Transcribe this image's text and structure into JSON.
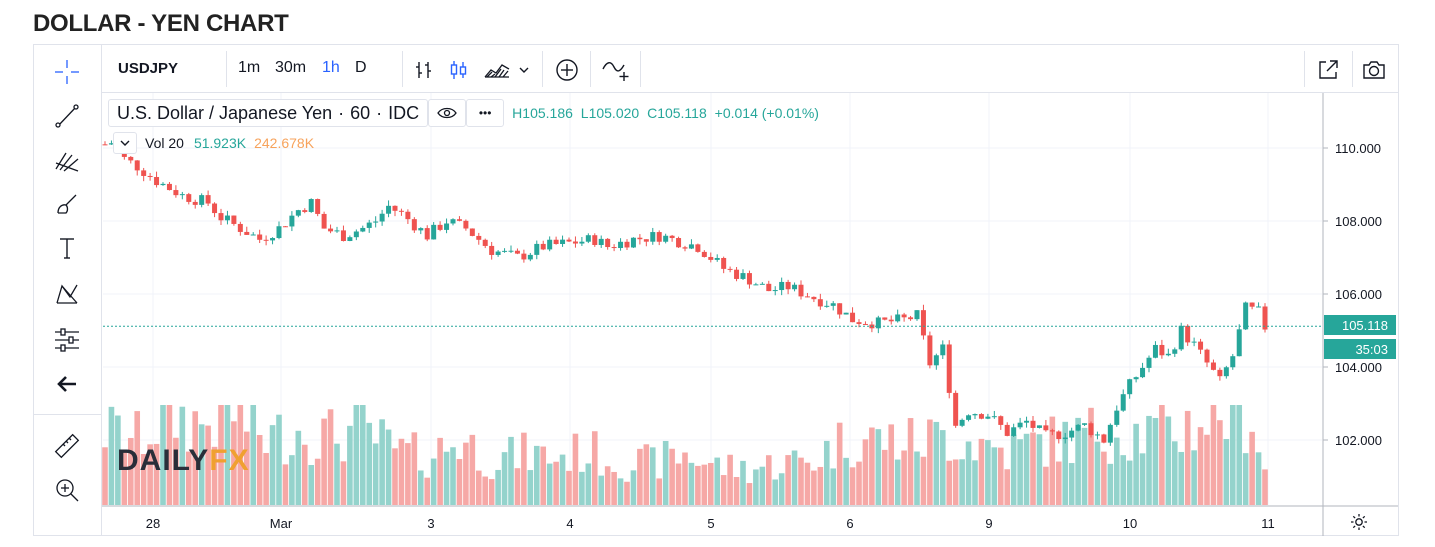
{
  "page_title": "DOLLAR - YEN CHART",
  "toolbar": {
    "symbol": "USDJPY",
    "intervals": [
      "1m",
      "30m",
      "1h",
      "D"
    ],
    "active_interval": "1h",
    "icons": [
      "bar-style-icon",
      "candle-style-icon",
      "area-style-icon",
      "chevron-down-icon",
      "add-circle-icon",
      "compare-icon",
      "snapshot-external-icon",
      "camera-icon"
    ]
  },
  "left_tools": [
    "crosshair-icon",
    "trend-line-icon",
    "fib-icon",
    "brush-icon",
    "text-icon",
    "pattern-icon",
    "measure-icon",
    "back-arrow-icon",
    "ruler-icon",
    "zoom-in-icon"
  ],
  "legend": {
    "name": "U.S. Dollar / Japanese Yen",
    "interval": "60",
    "exchange": "IDC",
    "high": "H105.186",
    "low": "L105.020",
    "close": "C105.118",
    "change": "+0.014 (+0.01%)",
    "more": "•••"
  },
  "volume_legend": {
    "label": "Vol 20",
    "v1": "51.923K",
    "v2": "242.678K"
  },
  "price_tags": {
    "last_price": "105.118",
    "countdown": "35:03"
  },
  "logo": {
    "part1": "DAILY",
    "part2": "FX"
  },
  "colors": {
    "up": "#26a69a",
    "down": "#ef5350",
    "up_vol": "#94d3cc",
    "down_vol": "#f6a8a6",
    "accent": "#2962ff",
    "grid": "#f0f3fa"
  },
  "chart_data": {
    "type": "candlestick",
    "y_ticks": [
      "110.000",
      "108.000",
      "106.000",
      "104.000",
      "102.000"
    ],
    "ylim": [
      100.5,
      111.2
    ],
    "x_ticks": [
      "28",
      "Mar",
      "3",
      "4",
      "5",
      "6",
      "9",
      "10",
      "11"
    ],
    "last_price": 105.118,
    "close_path": [
      [
        0,
        110.1
      ],
      [
        2,
        110.2
      ],
      [
        3,
        109.7
      ],
      [
        5,
        109.5
      ],
      [
        8,
        109.1
      ],
      [
        12,
        108.7
      ],
      [
        16,
        108.5
      ],
      [
        18,
        108.1
      ],
      [
        20,
        107.9
      ],
      [
        24,
        107.5
      ],
      [
        27,
        107.8
      ],
      [
        30,
        108.3
      ],
      [
        32,
        108.5
      ],
      [
        34,
        107.8
      ],
      [
        37,
        107.6
      ],
      [
        40,
        107.8
      ],
      [
        42,
        108.0
      ],
      [
        44,
        108.4
      ],
      [
        46,
        108.2
      ],
      [
        48,
        107.9
      ],
      [
        50,
        107.6
      ],
      [
        53,
        108.0
      ],
      [
        56,
        107.8
      ],
      [
        60,
        107.2
      ],
      [
        64,
        107.0
      ],
      [
        68,
        107.3
      ],
      [
        72,
        107.4
      ],
      [
        76,
        107.5
      ],
      [
        78,
        107.3
      ],
      [
        82,
        107.5
      ],
      [
        86,
        107.6
      ],
      [
        88,
        107.5
      ],
      [
        92,
        107.3
      ],
      [
        94,
        107.0
      ],
      [
        96,
        106.7
      ],
      [
        100,
        106.4
      ],
      [
        103,
        106.1
      ],
      [
        106,
        106.2
      ],
      [
        110,
        105.9
      ],
      [
        113,
        105.7
      ],
      [
        116,
        105.3
      ],
      [
        120,
        105.2
      ],
      [
        124,
        105.3
      ],
      [
        126,
        105.4
      ],
      [
        128,
        104.1
      ],
      [
        130,
        104.5
      ],
      [
        132,
        102.4
      ],
      [
        134,
        102.8
      ],
      [
        137,
        102.7
      ],
      [
        140,
        102.2
      ],
      [
        143,
        102.5
      ],
      [
        146,
        102.1
      ],
      [
        149,
        102.2
      ],
      [
        152,
        102.4
      ],
      [
        155,
        102.0
      ],
      [
        157,
        102.9
      ],
      [
        159,
        103.5
      ],
      [
        161,
        104.0
      ],
      [
        163,
        104.5
      ],
      [
        165,
        104.3
      ],
      [
        167,
        105.0
      ],
      [
        169,
        104.6
      ],
      [
        171,
        104.1
      ],
      [
        173,
        103.6
      ],
      [
        175,
        104.3
      ],
      [
        177,
        105.6
      ],
      [
        179,
        105.5
      ],
      [
        180,
        105.1
      ]
    ],
    "volume_path": [
      [
        0,
        0.25
      ],
      [
        5,
        0.22
      ],
      [
        10,
        0.3
      ],
      [
        15,
        0.27
      ],
      [
        20,
        0.32
      ],
      [
        25,
        0.22
      ],
      [
        30,
        0.25
      ],
      [
        35,
        0.23
      ],
      [
        40,
        0.25
      ],
      [
        45,
        0.18
      ],
      [
        50,
        0.16
      ],
      [
        55,
        0.22
      ],
      [
        60,
        0.15
      ],
      [
        65,
        0.17
      ],
      [
        70,
        0.16
      ],
      [
        75,
        0.18
      ],
      [
        80,
        0.14
      ],
      [
        85,
        0.14
      ],
      [
        90,
        0.17
      ],
      [
        95,
        0.13
      ],
      [
        100,
        0.12
      ],
      [
        105,
        0.14
      ],
      [
        110,
        0.15
      ],
      [
        115,
        0.22
      ],
      [
        120,
        0.22
      ],
      [
        125,
        0.21
      ],
      [
        130,
        0.23
      ],
      [
        135,
        0.21
      ],
      [
        140,
        0.18
      ],
      [
        145,
        0.21
      ],
      [
        150,
        0.22
      ],
      [
        155,
        0.25
      ],
      [
        160,
        0.24
      ],
      [
        165,
        0.24
      ],
      [
        170,
        0.28
      ],
      [
        175,
        0.32
      ],
      [
        178,
        0.3
      ],
      [
        180,
        0.12
      ]
    ],
    "n_candles": 181
  }
}
